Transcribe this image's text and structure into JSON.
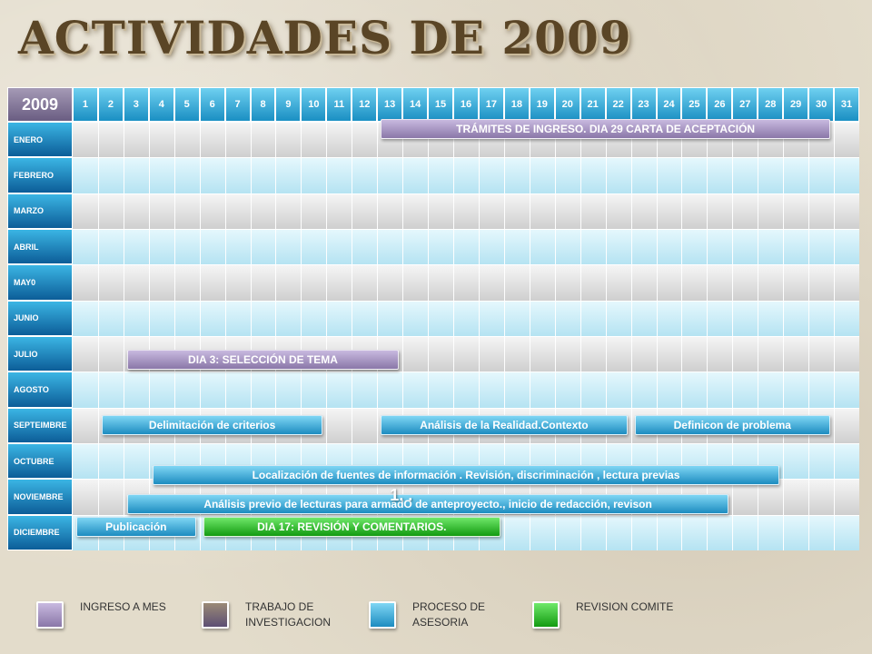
{
  "title": "ACTIVIDADES DE 2009",
  "chart_data": {
    "type": "gantt",
    "year_label": "2009",
    "days": [
      "1",
      "2",
      "3",
      "4",
      "5",
      "6",
      "7",
      "8",
      "9",
      "10",
      "11",
      "12",
      "13",
      "14",
      "15",
      "16",
      "17",
      "18",
      "19",
      "20",
      "21",
      "22",
      "23",
      "24",
      "25",
      "26",
      "27",
      "28",
      "29",
      "30",
      "31"
    ],
    "months": [
      "ENERO",
      "FEBRERO",
      "MARZO",
      "ABRIL",
      "MAY0",
      "JUNIO",
      "JULIO",
      "AGOSTO",
      "SEPTEIMBRE",
      "OCTUBRE",
      "NOVIEMBRE",
      "DICIEMBRE"
    ],
    "tasks": [
      {
        "label": "TRÁMITES DE INGRESO. DIA 29 CARTA DE ACEPTACIÓN",
        "month": 0,
        "start": 13,
        "end": 30,
        "category": "ingreso"
      },
      {
        "label": "DIA  3: SELECCIÓN DE TEMA",
        "month": 6,
        "start": 3,
        "end": 13,
        "category": "ingreso"
      },
      {
        "label": "Delimitación de criterios",
        "month": 8,
        "start": 2,
        "end": 10,
        "category": "asesoria"
      },
      {
        "label": "Análisis de la Realidad.Contexto",
        "month": 8,
        "start": 13,
        "end": 22,
        "category": "asesoria"
      },
      {
        "label": "Definicon de problema",
        "month": 8,
        "start": 23,
        "end": 30,
        "category": "asesoria"
      },
      {
        "label": "Localización de fuentes de información . Revisión,  discriminación , lectura previas",
        "month": 9,
        "start": 4,
        "end": 28,
        "category": "asesoria"
      },
      {
        "label": "Análisis  previo de lecturas para armadO de anteproyecto., inicio de redacción, revison",
        "month": 10,
        "start": 3,
        "end": 26,
        "category": "asesoria"
      },
      {
        "label": "Publicación",
        "month": 11,
        "start": 1,
        "end": 5,
        "category": "asesoria"
      },
      {
        "label": "DIA 17: REVISIÓN  Y COMENTARIOS.",
        "month": 11,
        "start": 6,
        "end": 17,
        "category": "revision"
      }
    ],
    "overlay_text": "1.   .",
    "legend": [
      {
        "key": "ingreso",
        "label": "INGRESO A MES"
      },
      {
        "key": "trabajo",
        "label": "TRABAJO DE INVESTIGACION"
      },
      {
        "key": "asesoria",
        "label": "PROCESO DE ASESORIA"
      },
      {
        "key": "revision",
        "label": "REVISION COMITE"
      }
    ]
  }
}
